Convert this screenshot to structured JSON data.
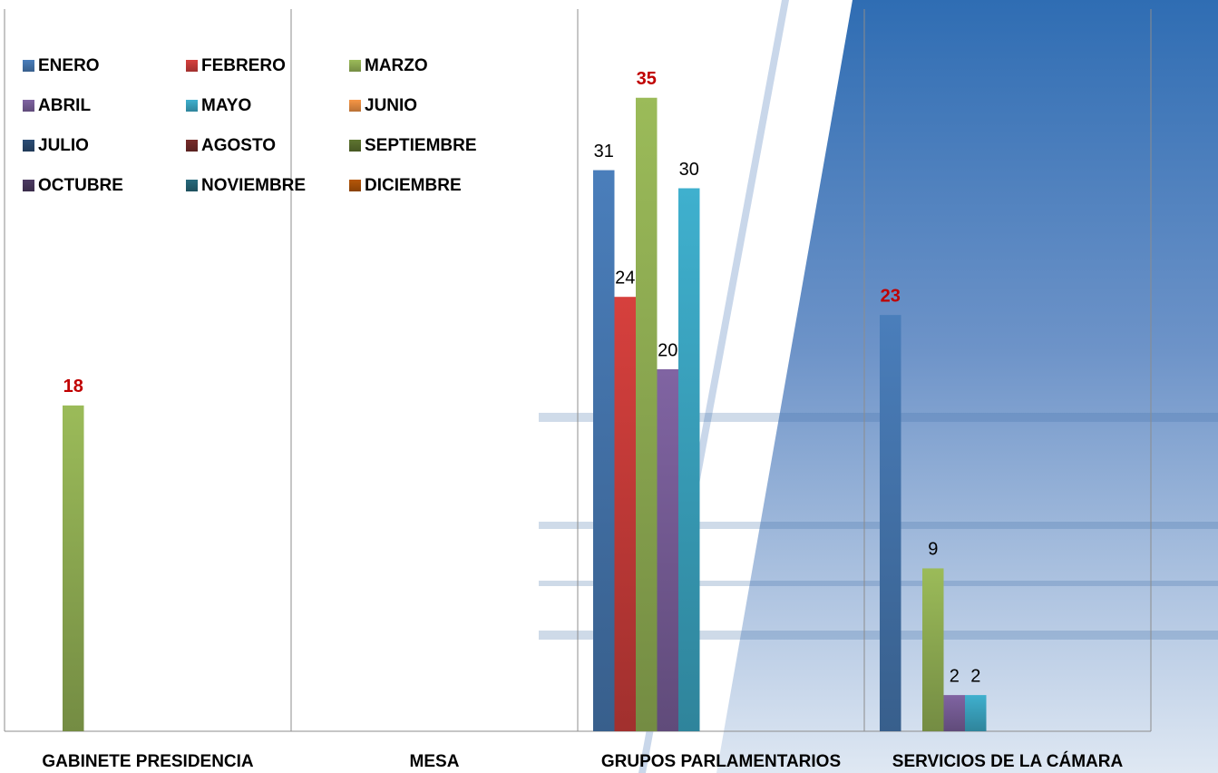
{
  "chart_data": {
    "type": "bar",
    "categories": [
      "GABINETE PRESIDENCIA",
      "MESA",
      "GRUPOS PARLAMENTARIOS",
      "SERVICIOS DE LA CÁMARA"
    ],
    "series": [
      {
        "name": "ENERO",
        "color": "#4a7ebb",
        "values": [
          null,
          null,
          31,
          23
        ]
      },
      {
        "name": "FEBRERO",
        "color": "#d6403d",
        "values": [
          null,
          null,
          24,
          null
        ]
      },
      {
        "name": "MARZO",
        "color": "#9bbb59",
        "values": [
          18,
          null,
          35,
          9
        ]
      },
      {
        "name": "ABRIL",
        "color": "#8064a2",
        "values": [
          null,
          null,
          20,
          2
        ]
      },
      {
        "name": "MAYO",
        "color": "#3fb0ce",
        "values": [
          null,
          null,
          30,
          2
        ]
      },
      {
        "name": "JUNIO",
        "color": "#f79646",
        "values": [
          null,
          null,
          null,
          null
        ]
      },
      {
        "name": "JULIO",
        "color": "#2c4d75",
        "values": [
          null,
          null,
          null,
          null
        ]
      },
      {
        "name": "AGOSTO",
        "color": "#772c2a",
        "values": [
          null,
          null,
          null,
          null
        ]
      },
      {
        "name": "SEPTIEMBRE",
        "color": "#5f7530",
        "values": [
          null,
          null,
          null,
          null
        ]
      },
      {
        "name": "OCTUBRE",
        "color": "#4d3b62",
        "values": [
          null,
          null,
          null,
          null
        ]
      },
      {
        "name": "NOVIEMBRE",
        "color": "#276a7c",
        "values": [
          null,
          null,
          null,
          null
        ]
      },
      {
        "name": "DICIEMBRE",
        "color": "#b65708",
        "values": [
          null,
          null,
          null,
          null
        ]
      }
    ],
    "ylim": [
      0,
      40
    ],
    "legend": "top-left"
  }
}
